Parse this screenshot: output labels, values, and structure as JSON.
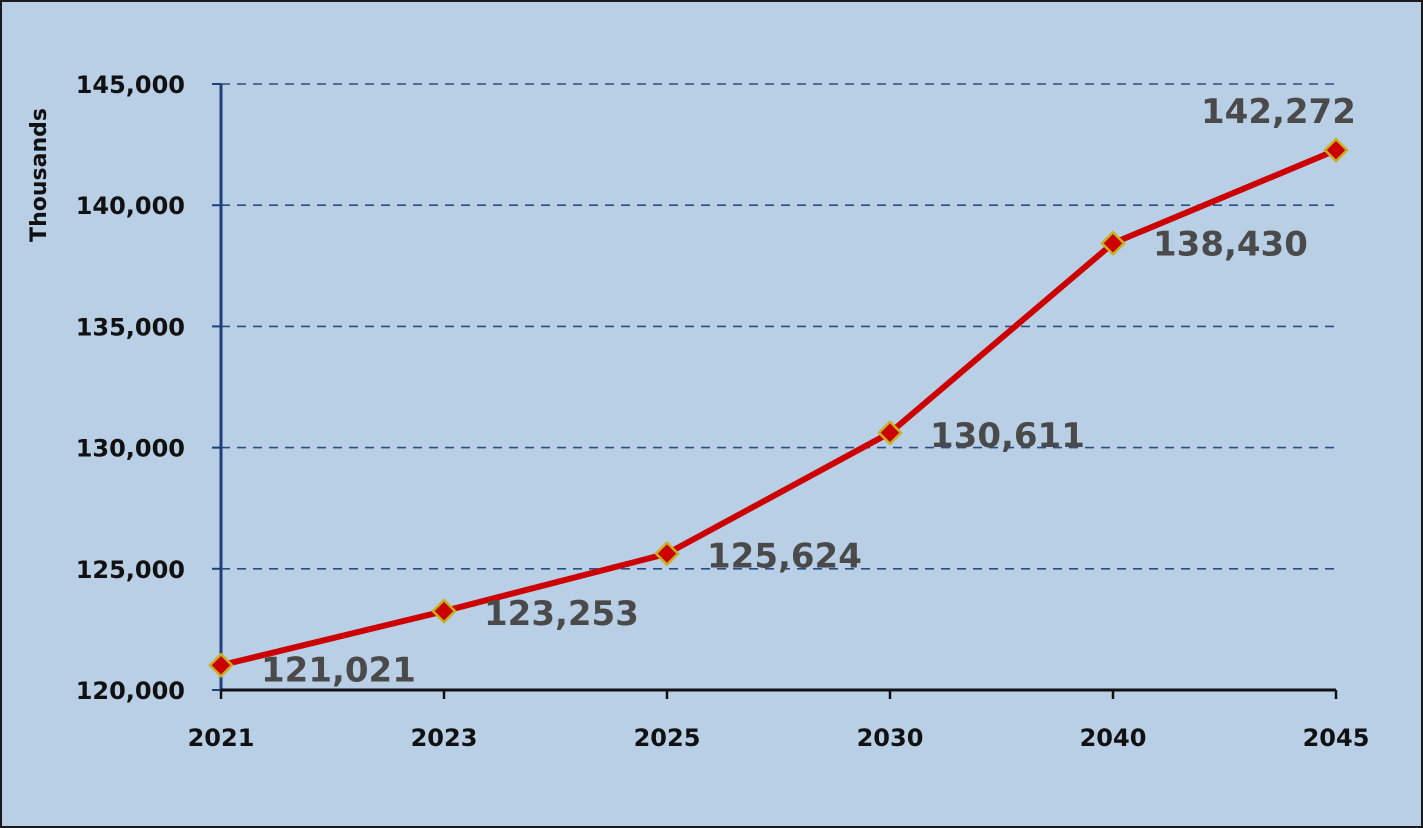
{
  "chart_data": {
    "type": "line",
    "title": "",
    "xlabel": "",
    "ylabel": "Thousands",
    "categories": [
      "2021",
      "2023",
      "2025",
      "2030",
      "2040",
      "2045"
    ],
    "values": [
      121021,
      123253,
      125624,
      130611,
      138430,
      142272
    ],
    "data_labels": [
      "121,021",
      "123,253",
      "125,624",
      "130,611",
      "138,430",
      "142,272"
    ],
    "ylim": [
      120000,
      145000
    ],
    "yticks": [
      120000,
      125000,
      130000,
      135000,
      140000,
      145000
    ],
    "ytick_labels": [
      "120,000",
      "125,000",
      "130,000",
      "135,000",
      "140,000",
      "145,000"
    ],
    "grid": "horizontal dashed",
    "legend": "none",
    "colors": {
      "background": "#b9cfe6",
      "line": "#cc0000",
      "marker_fill": "#cc0000",
      "marker_edge": "#c8b020",
      "gridline": "#2b4f8a",
      "y_axis": "#1f3f7a",
      "x_axis": "#111111",
      "data_label": "#4a4a4a"
    }
  }
}
